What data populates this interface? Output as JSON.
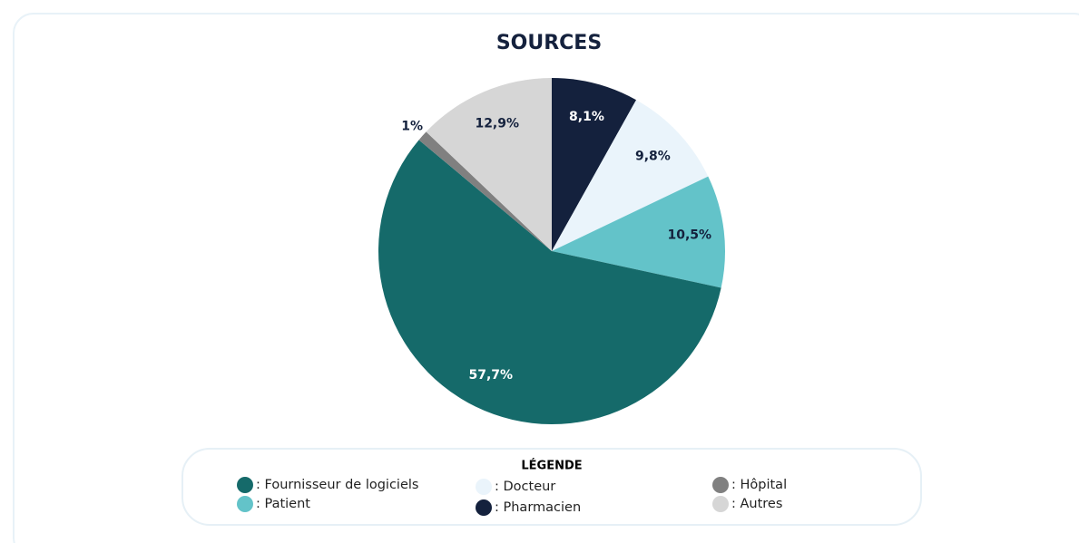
{
  "chart_data": {
    "type": "pie",
    "title": "SOURCES",
    "legend_title": "LÉGENDE",
    "categories": [
      ": Pharmacien",
      ": Docteur",
      ": Patient",
      ": Fournisseur de logiciels",
      ": Hôpital",
      ": Autres"
    ],
    "values": [
      8.1,
      9.8,
      10.5,
      57.7,
      1,
      12.9
    ],
    "value_labels": [
      "8,1%",
      "9,8%",
      "10,5%",
      "57,7%",
      "1%",
      "12,9%"
    ],
    "colors": [
      "#14213d",
      "#eaf4fb",
      "#63c3c9",
      "#156a6a",
      "#808080",
      "#d6d6d6"
    ]
  }
}
